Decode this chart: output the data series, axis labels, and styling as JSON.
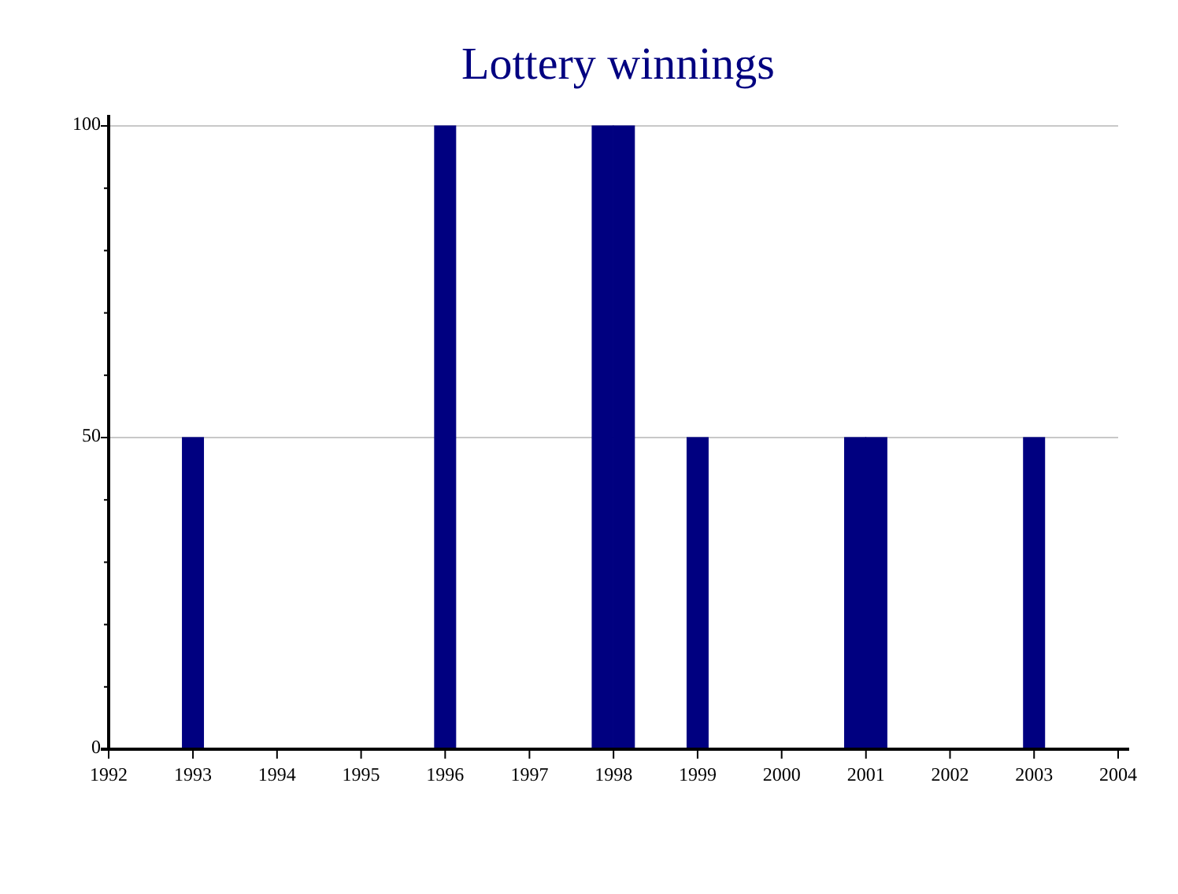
{
  "chart_data": {
    "type": "bar",
    "title": "Lottery winnings",
    "x": [
      "1993",
      "1996",
      "1997-11-15",
      "1998-02-15",
      "1999",
      "2000-11-15",
      "2001-02-15",
      "2003"
    ],
    "values": [
      50,
      100,
      100,
      100,
      50,
      50,
      50,
      50
    ],
    "color": "#000080",
    "xlim": [
      "1992",
      "2004"
    ],
    "xticks": [
      "1992",
      "1993",
      "1994",
      "1995",
      "1996",
      "1997",
      "1998",
      "1999",
      "2000",
      "2001",
      "2002",
      "2003",
      "2004"
    ],
    "ylim": [
      0,
      100
    ],
    "yticks": [
      0,
      {
        "value": 10,
        "label": null
      },
      {
        "value": 20,
        "label": null
      },
      {
        "value": 30,
        "label": null
      },
      {
        "value": 40,
        "label": null
      },
      50,
      {
        "value": 60,
        "label": null
      },
      {
        "value": 70,
        "label": null
      },
      {
        "value": 80,
        "label": null
      },
      {
        "value": 90,
        "label": null
      },
      100
    ],
    "grid": "y"
  }
}
